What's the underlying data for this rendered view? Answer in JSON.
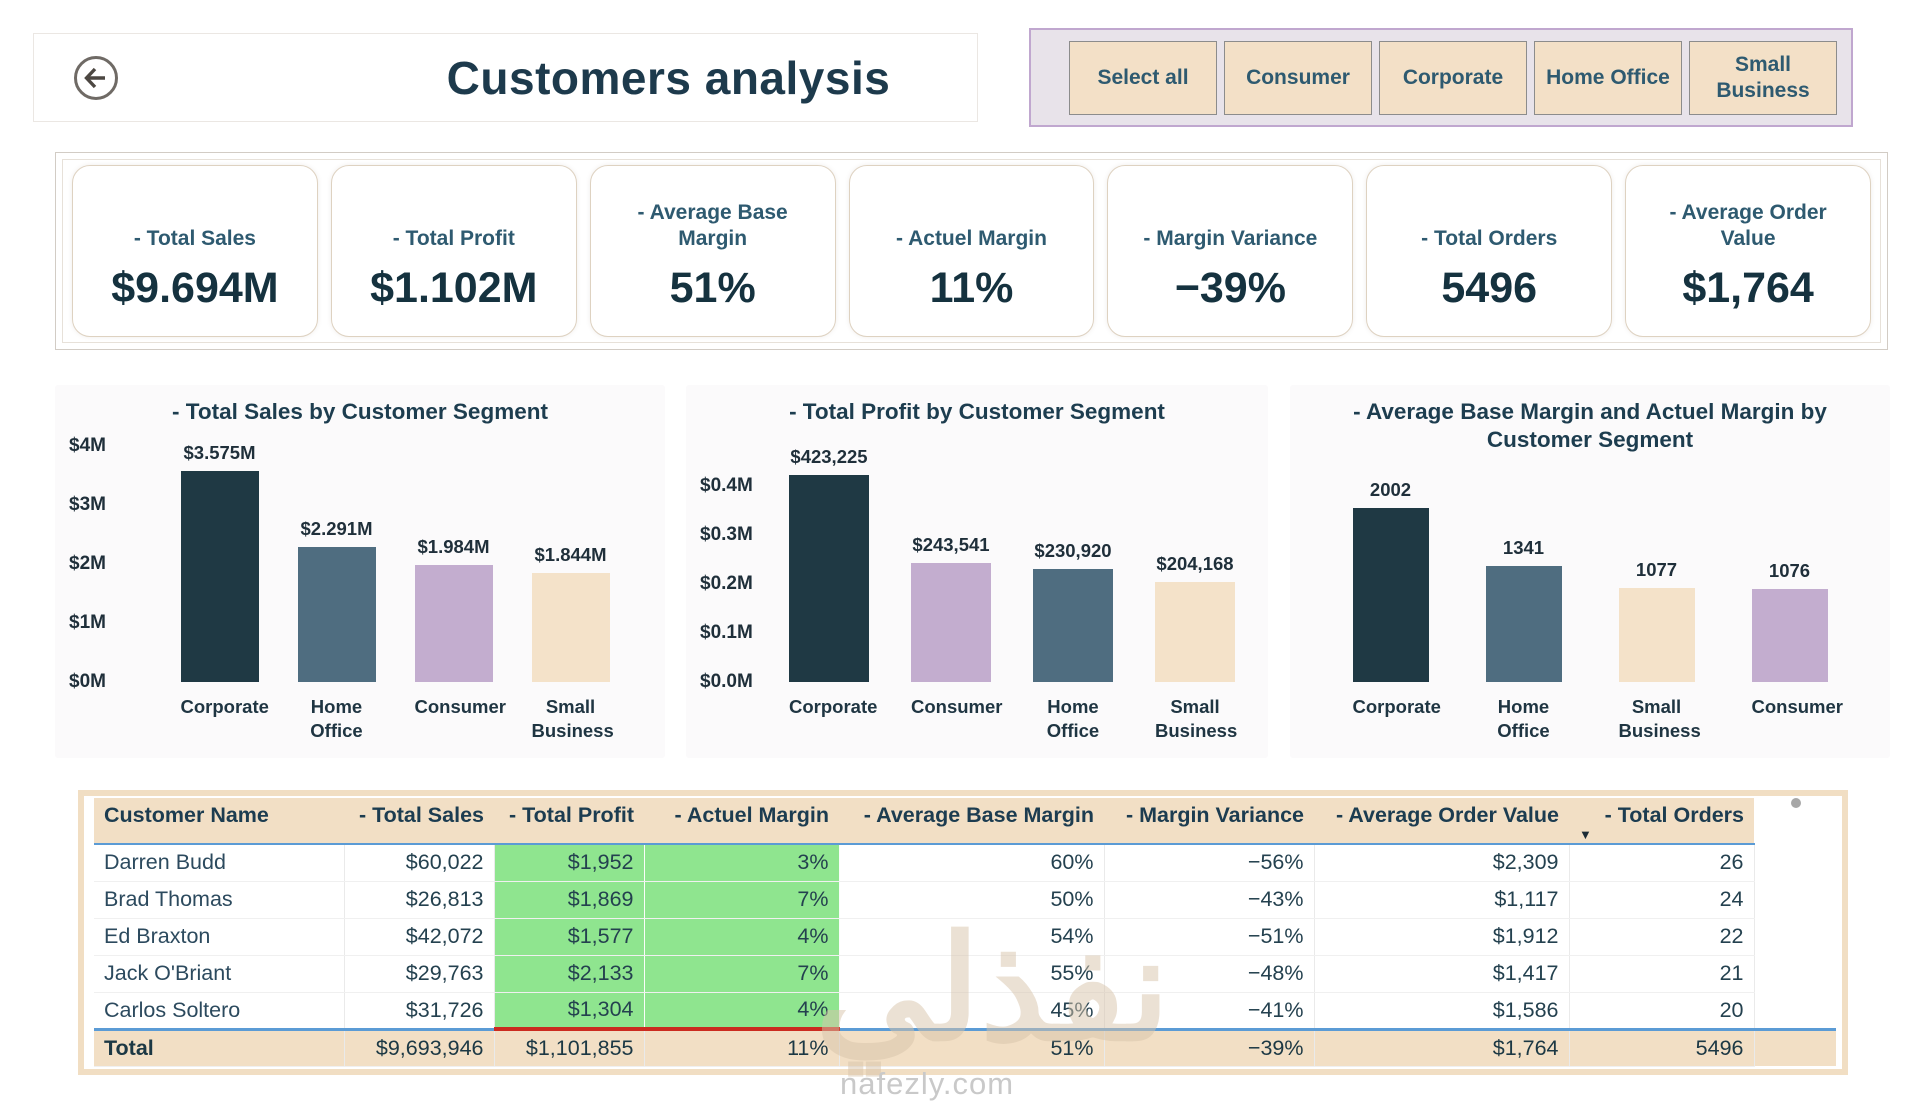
{
  "header": {
    "title": "Customers analysis",
    "back_icon": "arrow-left-circle"
  },
  "filters": {
    "buttons": [
      "Select all",
      "Consumer",
      "Corporate",
      "Home Office",
      "Small Business"
    ]
  },
  "kpis": [
    {
      "label": "- Total Sales",
      "value": "$9.694M"
    },
    {
      "label": "- Total Profit",
      "value": "$1.102M"
    },
    {
      "label": "- Average Base Margin",
      "value": "51%"
    },
    {
      "label": "- Actuel Margin",
      "value": "11%"
    },
    {
      "label": "- Margin Variance",
      "value": "−39%"
    },
    {
      "label": "- Total Orders",
      "value": "5496"
    },
    {
      "label": "- Average Order Value",
      "value": "$1,764"
    }
  ],
  "colors": {
    "segment_palette": {
      "Corporate": "#1f3944",
      "Home Office": "#4f6d80",
      "Consumer": "#c3adcf",
      "Small Business": "#f4e2c9"
    },
    "table_highlight_green": "#8fe58f",
    "table_header_tan": "#f2dfc5",
    "accent_blue_line": "#5b9bd5",
    "accent_red_line": "#cb2b1f",
    "title_text": "#1d3a4c",
    "filter_border_purple": "#c0a7cf"
  },
  "chart_data": [
    {
      "type": "bar",
      "title": "- Total Sales by Customer Segment",
      "categories": [
        "Corporate",
        "Home Office",
        "Consumer",
        "Small Business"
      ],
      "values": [
        3575000,
        2291000,
        1984000,
        1844000
      ],
      "value_labels": [
        "$3.575M",
        "$2.291M",
        "$1.984M",
        "$1.844M"
      ],
      "bar_colors": [
        "#1f3944",
        "#4f6d80",
        "#c3adcf",
        "#f4e2c9"
      ],
      "yticks": [
        {
          "label": "$0M",
          "value": 0
        },
        {
          "label": "$1M",
          "value": 1000000
        },
        {
          "label": "$2M",
          "value": 2000000
        },
        {
          "label": "$3M",
          "value": 3000000
        },
        {
          "label": "$4M",
          "value": 4000000
        }
      ],
      "ylim": [
        0,
        4000000
      ],
      "grid": false,
      "legend": "none",
      "data_labels": "above bars"
    },
    {
      "type": "bar",
      "title": "- Total Profit by Customer Segment",
      "categories": [
        "Corporate",
        "Consumer",
        "Home Office",
        "Small Business"
      ],
      "values": [
        423225,
        243541,
        230920,
        204168
      ],
      "value_labels": [
        "$423,225",
        "$243,541",
        "$230,920",
        "$204,168"
      ],
      "bar_colors": [
        "#1f3944",
        "#c3adcf",
        "#4f6d80",
        "#f4e2c9"
      ],
      "yticks": [
        {
          "label": "$0.0M",
          "value": 0
        },
        {
          "label": "$0.1M",
          "value": 100000
        },
        {
          "label": "$0.2M",
          "value": 200000
        },
        {
          "label": "$0.3M",
          "value": 300000
        },
        {
          "label": "$0.4M",
          "value": 400000
        }
      ],
      "ylim": [
        0,
        400000
      ],
      "grid": false,
      "legend": "none",
      "data_labels": "above bars"
    },
    {
      "type": "bar",
      "title": "- Average Base Margin and Actuel Margin by Customer Segment",
      "categories": [
        "Corporate",
        "Home Office",
        "Small Business",
        "Consumer"
      ],
      "values": [
        2002,
        1341,
        1077,
        1076
      ],
      "value_labels": [
        "2002",
        "1341",
        "1077",
        "1076"
      ],
      "bar_colors": [
        "#1f3944",
        "#4f6d80",
        "#f4e2c9",
        "#c3adcf"
      ],
      "yticks": [],
      "ylim": [
        0,
        2475
      ],
      "grid": false,
      "legend": "none",
      "data_labels": "above bars"
    }
  ],
  "table": {
    "columns": [
      {
        "label": "Customer Name",
        "align": "left",
        "highlight": false,
        "sorted": null
      },
      {
        "label": "- Total Sales",
        "align": "right",
        "highlight": false,
        "sorted": null
      },
      {
        "label": "- Total Profit",
        "align": "right",
        "highlight": true,
        "sorted": null
      },
      {
        "label": "- Actuel Margin",
        "align": "right",
        "highlight": true,
        "sorted": null
      },
      {
        "label": "- Average Base Margin",
        "align": "right",
        "highlight": false,
        "sorted": null
      },
      {
        "label": "- Margin Variance",
        "align": "right",
        "highlight": false,
        "sorted": null
      },
      {
        "label": "- Average Order Value",
        "align": "right",
        "highlight": false,
        "sorted": null
      },
      {
        "label": "- Total Orders",
        "align": "right",
        "highlight": false,
        "sorted": "desc"
      }
    ],
    "rows": [
      [
        "Darren Budd",
        "$60,022",
        "$1,952",
        "3%",
        "60%",
        "−56%",
        "$2,309",
        "26"
      ],
      [
        "Brad Thomas",
        "$26,813",
        "$1,869",
        "7%",
        "50%",
        "−43%",
        "$1,117",
        "24"
      ],
      [
        "Ed Braxton",
        "$42,072",
        "$1,577",
        "4%",
        "54%",
        "−51%",
        "$1,912",
        "22"
      ],
      [
        "Jack O'Briant",
        "$29,763",
        "$2,133",
        "7%",
        "55%",
        "−48%",
        "$1,417",
        "21"
      ],
      [
        "Carlos Soltero",
        "$31,726",
        "$1,304",
        "4%",
        "45%",
        "−41%",
        "$1,586",
        "20"
      ]
    ],
    "total_row": [
      "Total",
      "$9,693,946",
      "$1,101,855",
      "11%",
      "51%",
      "−39%",
      "$1,764",
      "5496"
    ]
  },
  "watermark": {
    "arabic": "نفذلي",
    "site": "nafezly.com"
  }
}
